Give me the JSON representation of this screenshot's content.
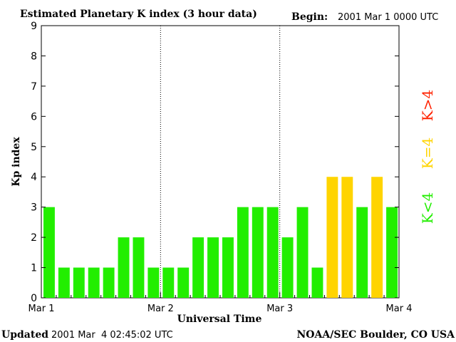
{
  "header": {
    "title": "Estimated Planetary K index (3 hour data)",
    "begin_label": "Begin:",
    "begin_value": "2001 Mar 1 0000 UTC"
  },
  "footer": {
    "updated_label": "Updated",
    "updated_value": "2001 Mar  4 02:45:02 UTC",
    "source": "NOAA/SEC Boulder, CO USA"
  },
  "legend": {
    "low": {
      "text": "K<4",
      "color": "#22ee00"
    },
    "mid": {
      "text": "K=4",
      "color": "#ffd400"
    },
    "high": {
      "text": "K>4",
      "color": "#ff2200"
    }
  },
  "chart_data": {
    "type": "bar",
    "title": "Estimated Planetary K index (3 hour data)",
    "xlabel": "Universal Time",
    "ylabel": "Kp index",
    "ylim": [
      0,
      9
    ],
    "yticks": [
      0,
      1,
      2,
      3,
      4,
      5,
      6,
      7,
      8,
      9
    ],
    "xtick_labels": [
      "Mar 1",
      "Mar 2",
      "Mar 3",
      "Mar 4"
    ],
    "interval_hours": 3,
    "values": [
      3,
      1,
      1,
      1,
      1,
      2,
      2,
      1,
      1,
      1,
      2,
      2,
      2,
      3,
      3,
      3,
      2,
      3,
      1,
      4,
      4,
      3,
      4,
      3
    ],
    "day_separators": "dotted",
    "colors": {
      "below4": "#22ee00",
      "equal4": "#ffd400",
      "above4": "#ff2200"
    }
  }
}
